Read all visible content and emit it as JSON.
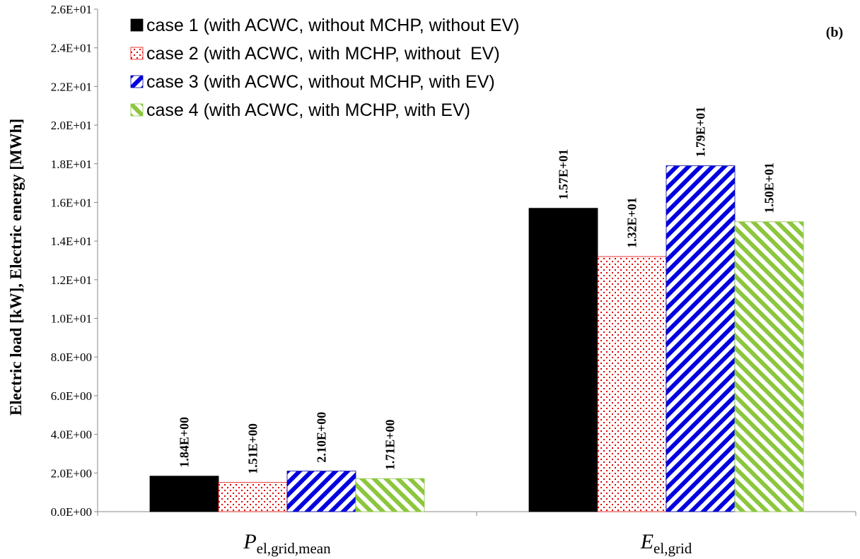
{
  "chart_data": {
    "type": "bar",
    "panel_label": "(b)",
    "ylabel": "Electric load [kW], Electric energy [MWh]",
    "ylim": [
      0,
      26
    ],
    "yticks": [
      "0.0E+00",
      "2.0E+00",
      "4.0E+00",
      "6.0E+00",
      "8.0E+00",
      "1.0E+01",
      "1.2E+01",
      "1.4E+01",
      "1.6E+01",
      "1.8E+01",
      "2.0E+01",
      "2.2E+01",
      "2.4E+01",
      "2.6E+01"
    ],
    "categories": [
      {
        "main": "P",
        "sub": "el,grid,mean"
      },
      {
        "main": "E",
        "sub": "el,grid"
      }
    ],
    "series": [
      {
        "name": "case 1 (with ACWC, without MCHP, without EV)",
        "values": [
          1.84,
          15.7
        ],
        "labels": [
          "1.84E+00",
          "1.57E+01"
        ],
        "pattern": "solid",
        "color": "#000000"
      },
      {
        "name": "case 2 (with ACWC, with MCHP, without  EV)",
        "values": [
          1.51,
          13.2
        ],
        "labels": [
          "1.51E+00",
          "1.32E+01"
        ],
        "pattern": "dots",
        "color": "#e00000"
      },
      {
        "name": "case 3 (with ACWC, without MCHP, with EV)",
        "values": [
          2.1,
          17.9
        ],
        "labels": [
          "2.10E+00",
          "1.79E+01"
        ],
        "pattern": "diag-blue",
        "color": "#0000e0"
      },
      {
        "name": "case 4 (with ACWC, with MCHP, with EV)",
        "values": [
          1.71,
          15.0
        ],
        "labels": [
          "1.71E+00",
          "1.50E+01"
        ],
        "pattern": "diag-green",
        "color": "#8cc63e"
      }
    ],
    "legend_position": "top-left",
    "grid": false
  }
}
